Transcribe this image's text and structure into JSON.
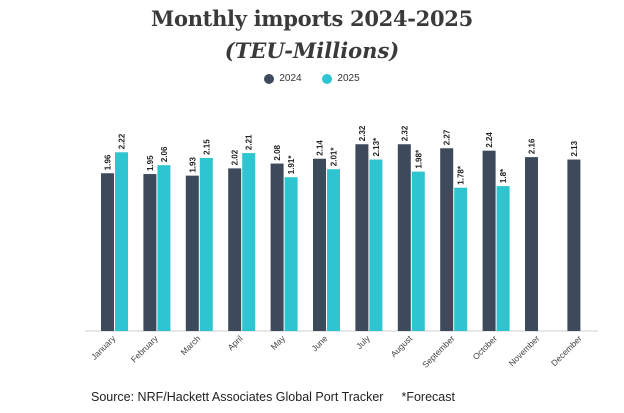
{
  "chart_data": {
    "type": "bar",
    "title": "Monthly imports 2024-2025",
    "subtitle": "(TEU-Millions)",
    "categories": [
      "January",
      "February",
      "March",
      "April",
      "May",
      "June",
      "July",
      "August",
      "September",
      "October",
      "November",
      "December"
    ],
    "series": [
      {
        "name": "2024",
        "color": "#3d4a5c",
        "values": [
          1.96,
          1.95,
          1.93,
          2.02,
          2.08,
          2.14,
          2.32,
          2.32,
          2.27,
          2.24,
          2.16,
          2.13
        ],
        "labels": [
          "1.96",
          "1.95",
          "1.93",
          "2.02",
          "2.08",
          "2.14",
          "2.32",
          "2.32",
          "2.27",
          "2.24",
          "2.16",
          "2.13"
        ]
      },
      {
        "name": "2025",
        "color": "#2ec4d0",
        "values": [
          2.22,
          2.06,
          2.15,
          2.21,
          1.91,
          2.01,
          2.13,
          1.98,
          1.78,
          1.8,
          null,
          null
        ],
        "labels": [
          "2.22",
          "2.06",
          "2.15",
          "2.21",
          "1.91*",
          "2.01*",
          "2.13*",
          "1.98*",
          "1.78*",
          "1.8*",
          "",
          ""
        ]
      }
    ],
    "ylim": [
      0,
      2.6
    ],
    "grid": false,
    "legend": "top-center",
    "source": "Source: NRF/Hackett Associates Global Port Tracker",
    "footnote": "*Forecast"
  }
}
